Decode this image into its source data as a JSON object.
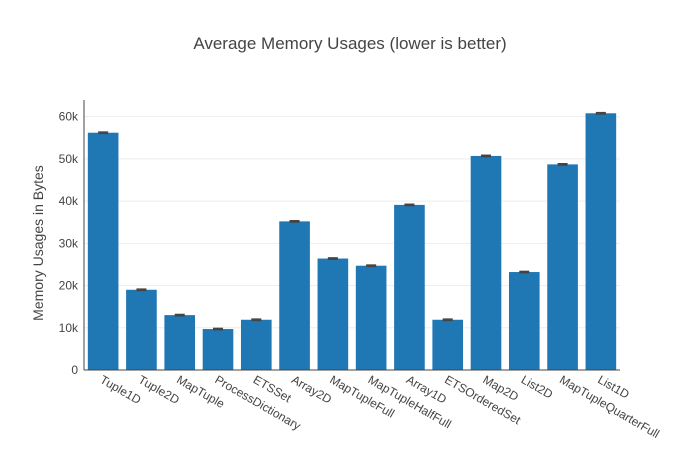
{
  "chart_data": {
    "type": "bar",
    "title": "Average Memory Usages (lower is better)",
    "xlabel": "",
    "ylabel": "Memory Usages in Bytes",
    "categories": [
      "Tuple1D",
      "Tuple2D",
      "MapTuple",
      "ProcessDictionary",
      "ETSSet",
      "Array2D",
      "MapTupleFull",
      "MapTupleHalfFull",
      "Array1D",
      "ETSOrderedSet",
      "Map2D",
      "List2D",
      "MapTupleQuarterFull",
      "List1D"
    ],
    "values": [
      56200,
      19000,
      13000,
      9700,
      11900,
      35200,
      26400,
      24700,
      39100,
      11900,
      50700,
      23200,
      48700,
      60800
    ],
    "error": [
      150,
      150,
      150,
      150,
      150,
      150,
      150,
      150,
      150,
      150,
      150,
      150,
      150,
      150
    ],
    "ylim": [
      0,
      63000
    ],
    "yticks": [
      0,
      10000,
      20000,
      30000,
      40000,
      50000,
      60000
    ],
    "ytick_labels": [
      "0",
      "10k",
      "20k",
      "30k",
      "40k",
      "50k",
      "60k"
    ],
    "grid": true,
    "legend": false,
    "bar_color": "#1f77b4",
    "error_color": "#444444"
  }
}
